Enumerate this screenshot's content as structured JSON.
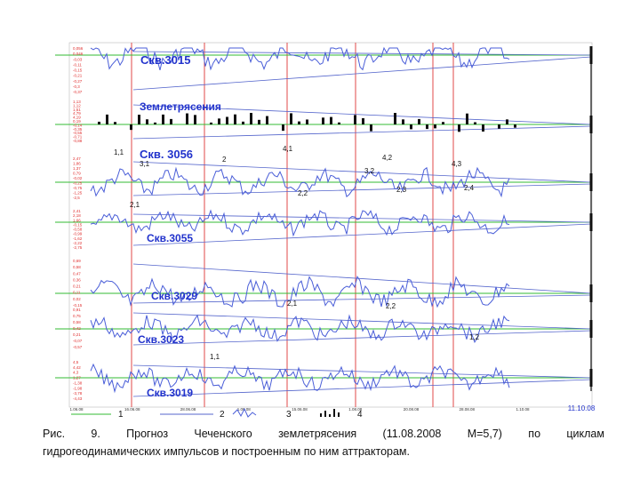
{
  "chart_data": {
    "type": "line",
    "panels": [
      {
        "name": "Скв.3015",
        "ticks": [
          "0,056",
          "0,046",
          "-0,03",
          "-0,11",
          "-0,15",
          "-0,21",
          "-0,27",
          "-0,3",
          "-0,37"
        ]
      },
      {
        "name": "Землетрясения",
        "ticks": [
          "1,13",
          "1,12",
          "1,51",
          "4,79",
          "4,19",
          "0,19",
          "-0,14",
          "-0,35",
          "-0,55",
          "-0,71",
          "-0,88"
        ]
      },
      {
        "name": "Скв. 3056",
        "ticks": [
          "2,47",
          "1,86",
          "1,37",
          "0,79",
          "-0,02",
          "-0,25",
          "-0,75",
          "-1,25",
          "-2,5"
        ]
      },
      {
        "name": "Скв.3055",
        "ticks": [
          "2,41",
          "2,18",
          "1,66",
          "-0,15",
          "-0,58",
          "-0,99",
          "-1,62",
          "-2,22",
          "-2,75"
        ]
      },
      {
        "name": "Скв.3029",
        "ticks": [
          "0,69",
          "0,58",
          "0,47",
          "0,36",
          "0,21",
          "0,11",
          "0,02",
          "-0,15"
        ]
      },
      {
        "name": "Скв.3023",
        "ticks": [
          "0,91",
          "0,75",
          "0,58",
          "0,42",
          "0,21",
          "-0,07",
          "-0,57"
        ]
      },
      {
        "name": "Скв.3019",
        "ticks": [
          "4,5",
          "4,42",
          "4,3",
          "1,27",
          "-1,38",
          "-1,98",
          "-3,78",
          "-4,43"
        ]
      }
    ],
    "extrema_labels": [
      {
        "panel": 2,
        "text": "1,1"
      },
      {
        "panel": 2,
        "text": "3,1"
      },
      {
        "panel": 2,
        "text": "2"
      },
      {
        "panel": 2,
        "text": "4,1"
      },
      {
        "panel": 2,
        "text": "4,2"
      },
      {
        "panel": 2,
        "text": "3,2"
      },
      {
        "panel": 2,
        "text": "4,3"
      },
      {
        "panel": 2,
        "text": "2,1"
      },
      {
        "panel": 2,
        "text": "2,2"
      },
      {
        "panel": 2,
        "text": "2,3"
      },
      {
        "panel": 2,
        "text": "2,4"
      },
      {
        "panel": 4,
        "text": "2,1"
      },
      {
        "panel": 4,
        "text": "2,2"
      },
      {
        "panel": 5,
        "text": "1,2"
      },
      {
        "panel": 5,
        "text": "1,1"
      }
    ],
    "x_ticks": [
      "1.06.08",
      "16.06.08",
      "28.06.08",
      "1.06.08",
      "15.06.08",
      "1.08.08",
      "20.08.08",
      "28.08.08",
      "1.10.08"
    ],
    "x_end_label": "11.10.08",
    "legend": [
      "1",
      "2",
      "3",
      "4"
    ],
    "grid": false
  },
  "caption": {
    "line1": [
      "Рис.",
      "9.",
      "Прогноз",
      "Чеченского",
      "землетрясения",
      "(11.08.2008",
      "М=5,7)",
      "по",
      "циклам"
    ],
    "line2": "гидрогеодинамических импульсов и построенным по ним аттракторам."
  },
  "colors": {
    "series": "#4a5ed8",
    "baseline": "#33bb33",
    "marker": "#e04a4a",
    "attractor": "#5566cc",
    "name": "#2233cc",
    "ticks": "#e03030"
  }
}
